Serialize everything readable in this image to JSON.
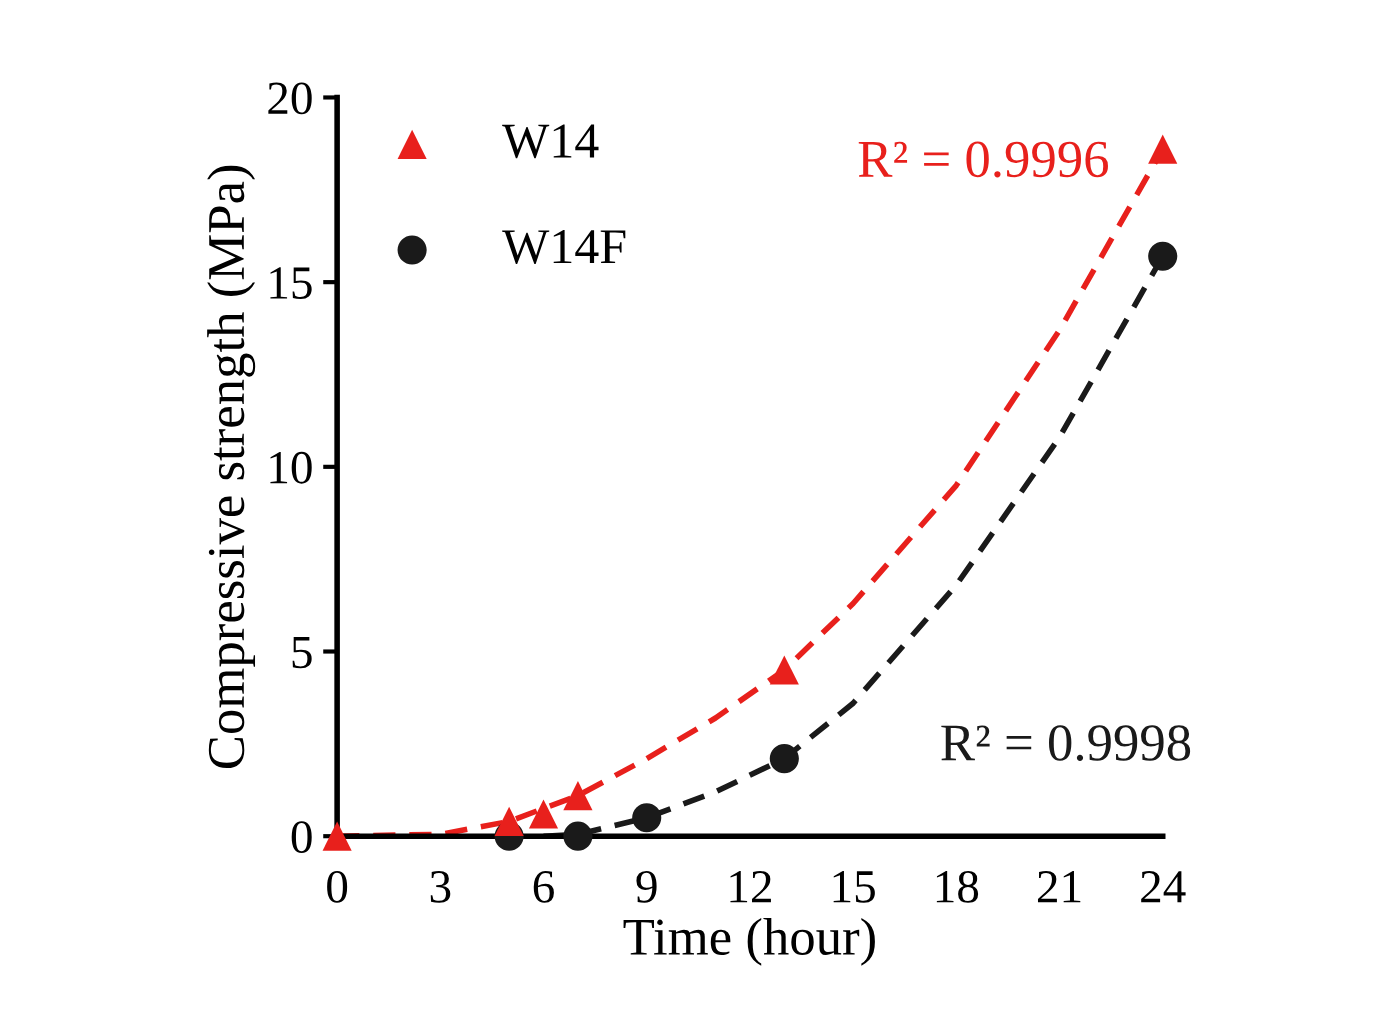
{
  "chart_data": {
    "type": "scatter",
    "xlabel": "Time (hour)",
    "ylabel": "Compressive strength (MPa)",
    "xlim": [
      0,
      24
    ],
    "xticks": [
      0,
      3,
      6,
      9,
      12,
      15,
      18,
      21,
      24
    ],
    "ylim": [
      0,
      20
    ],
    "yticks": [
      0,
      5,
      10,
      15,
      20
    ],
    "grid": false,
    "legend": "top left",
    "series": [
      {
        "name": "W14",
        "marker": "triangle",
        "color": "#e8201c",
        "x": [
          0,
          5,
          6,
          7,
          13,
          24
        ],
        "values": [
          0,
          0.4,
          0.6,
          1.1,
          4.5,
          18.6
        ]
      },
      {
        "name": "W14F",
        "marker": "circle",
        "color": "#1a1a1a",
        "x": [
          5,
          7,
          9,
          13,
          24
        ],
        "values": [
          0,
          0,
          0.5,
          2.1,
          15.7
        ]
      },
      {
        "type": "line",
        "line_style": "dashed",
        "marker": "none",
        "color": "#e8201c",
        "x": [
          0,
          3,
          5,
          7,
          9,
          11,
          13,
          15,
          18,
          21,
          24
        ],
        "values": [
          0,
          0.05,
          0.4,
          1.1,
          2.1,
          3.2,
          4.5,
          6.3,
          9.5,
          13.7,
          18.6
        ]
      },
      {
        "type": "line",
        "line_style": "dashed",
        "marker": "none",
        "color": "#1a1a1a",
        "x": [
          6,
          7,
          9,
          11,
          13,
          15,
          18,
          21,
          24
        ],
        "values": [
          0,
          0.05,
          0.5,
          1.2,
          2.1,
          3.6,
          6.8,
          10.8,
          15.7
        ]
      }
    ],
    "annotations": [
      "R² = 0.9996",
      "R² = 0.9998"
    ]
  }
}
